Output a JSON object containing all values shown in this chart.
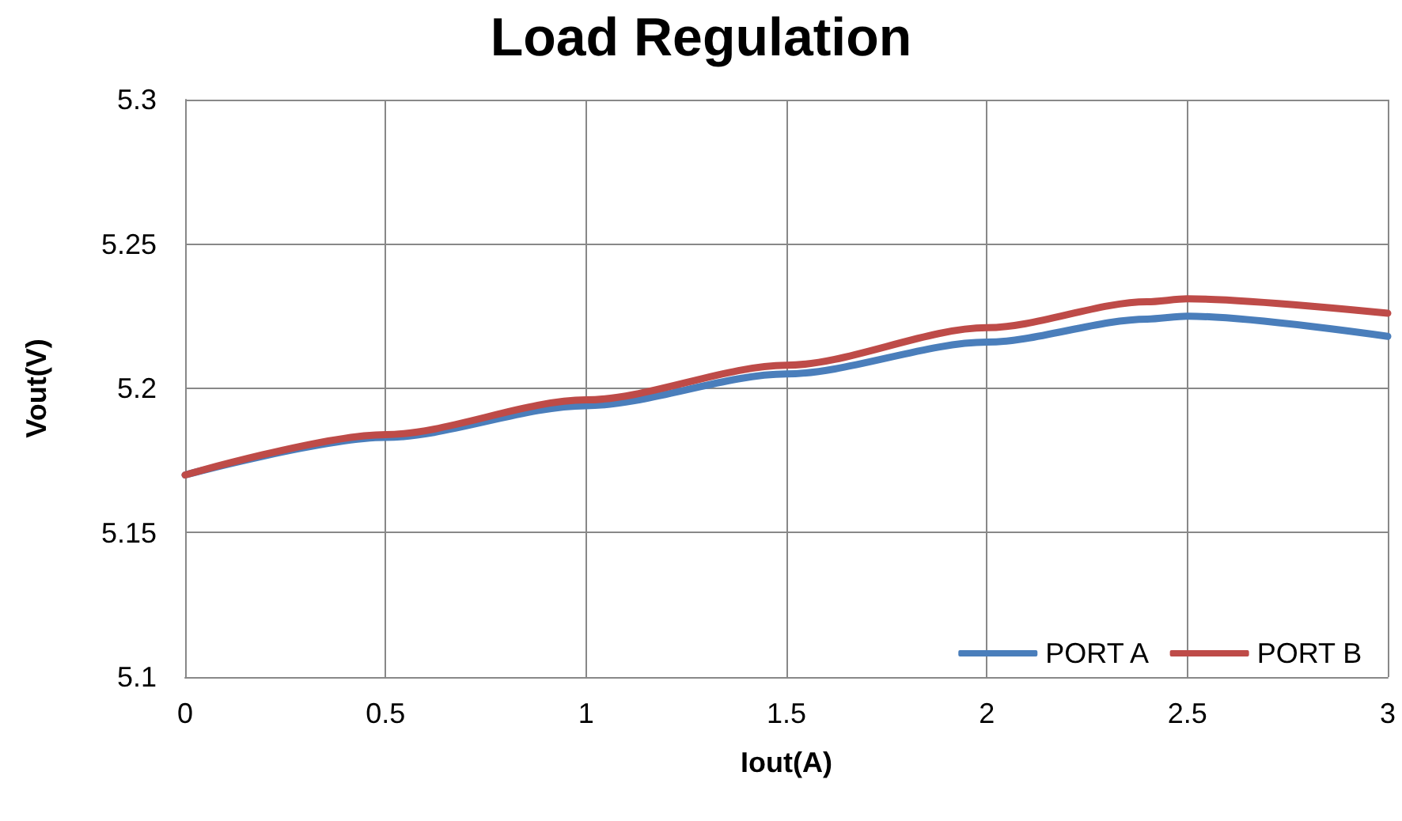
{
  "chart_data": {
    "type": "line",
    "title": "Load Regulation",
    "xlabel": "Iout(A)",
    "ylabel": "Vout(V)",
    "x": [
      0,
      0.5,
      1,
      1.5,
      2,
      2.4,
      2.5,
      3
    ],
    "series": [
      {
        "name": "PORT A",
        "color": "#4a7ebb",
        "values": [
          5.17,
          5.183,
          5.194,
          5.205,
          5.216,
          5.224,
          5.225,
          5.218
        ]
      },
      {
        "name": "PORT B",
        "color": "#be4b48",
        "values": [
          5.17,
          5.184,
          5.196,
          5.208,
          5.221,
          5.23,
          5.231,
          5.226
        ]
      }
    ],
    "xlim": [
      0,
      3
    ],
    "xticks": [
      0,
      0.5,
      1,
      1.5,
      2,
      2.5,
      3
    ],
    "ylim": [
      5.1,
      5.3
    ],
    "yticks": [
      5.1,
      5.15,
      5.2,
      5.25,
      5.3
    ],
    "grid": true,
    "legend": "bottom right",
    "marker": "none",
    "line_style": "solid"
  }
}
